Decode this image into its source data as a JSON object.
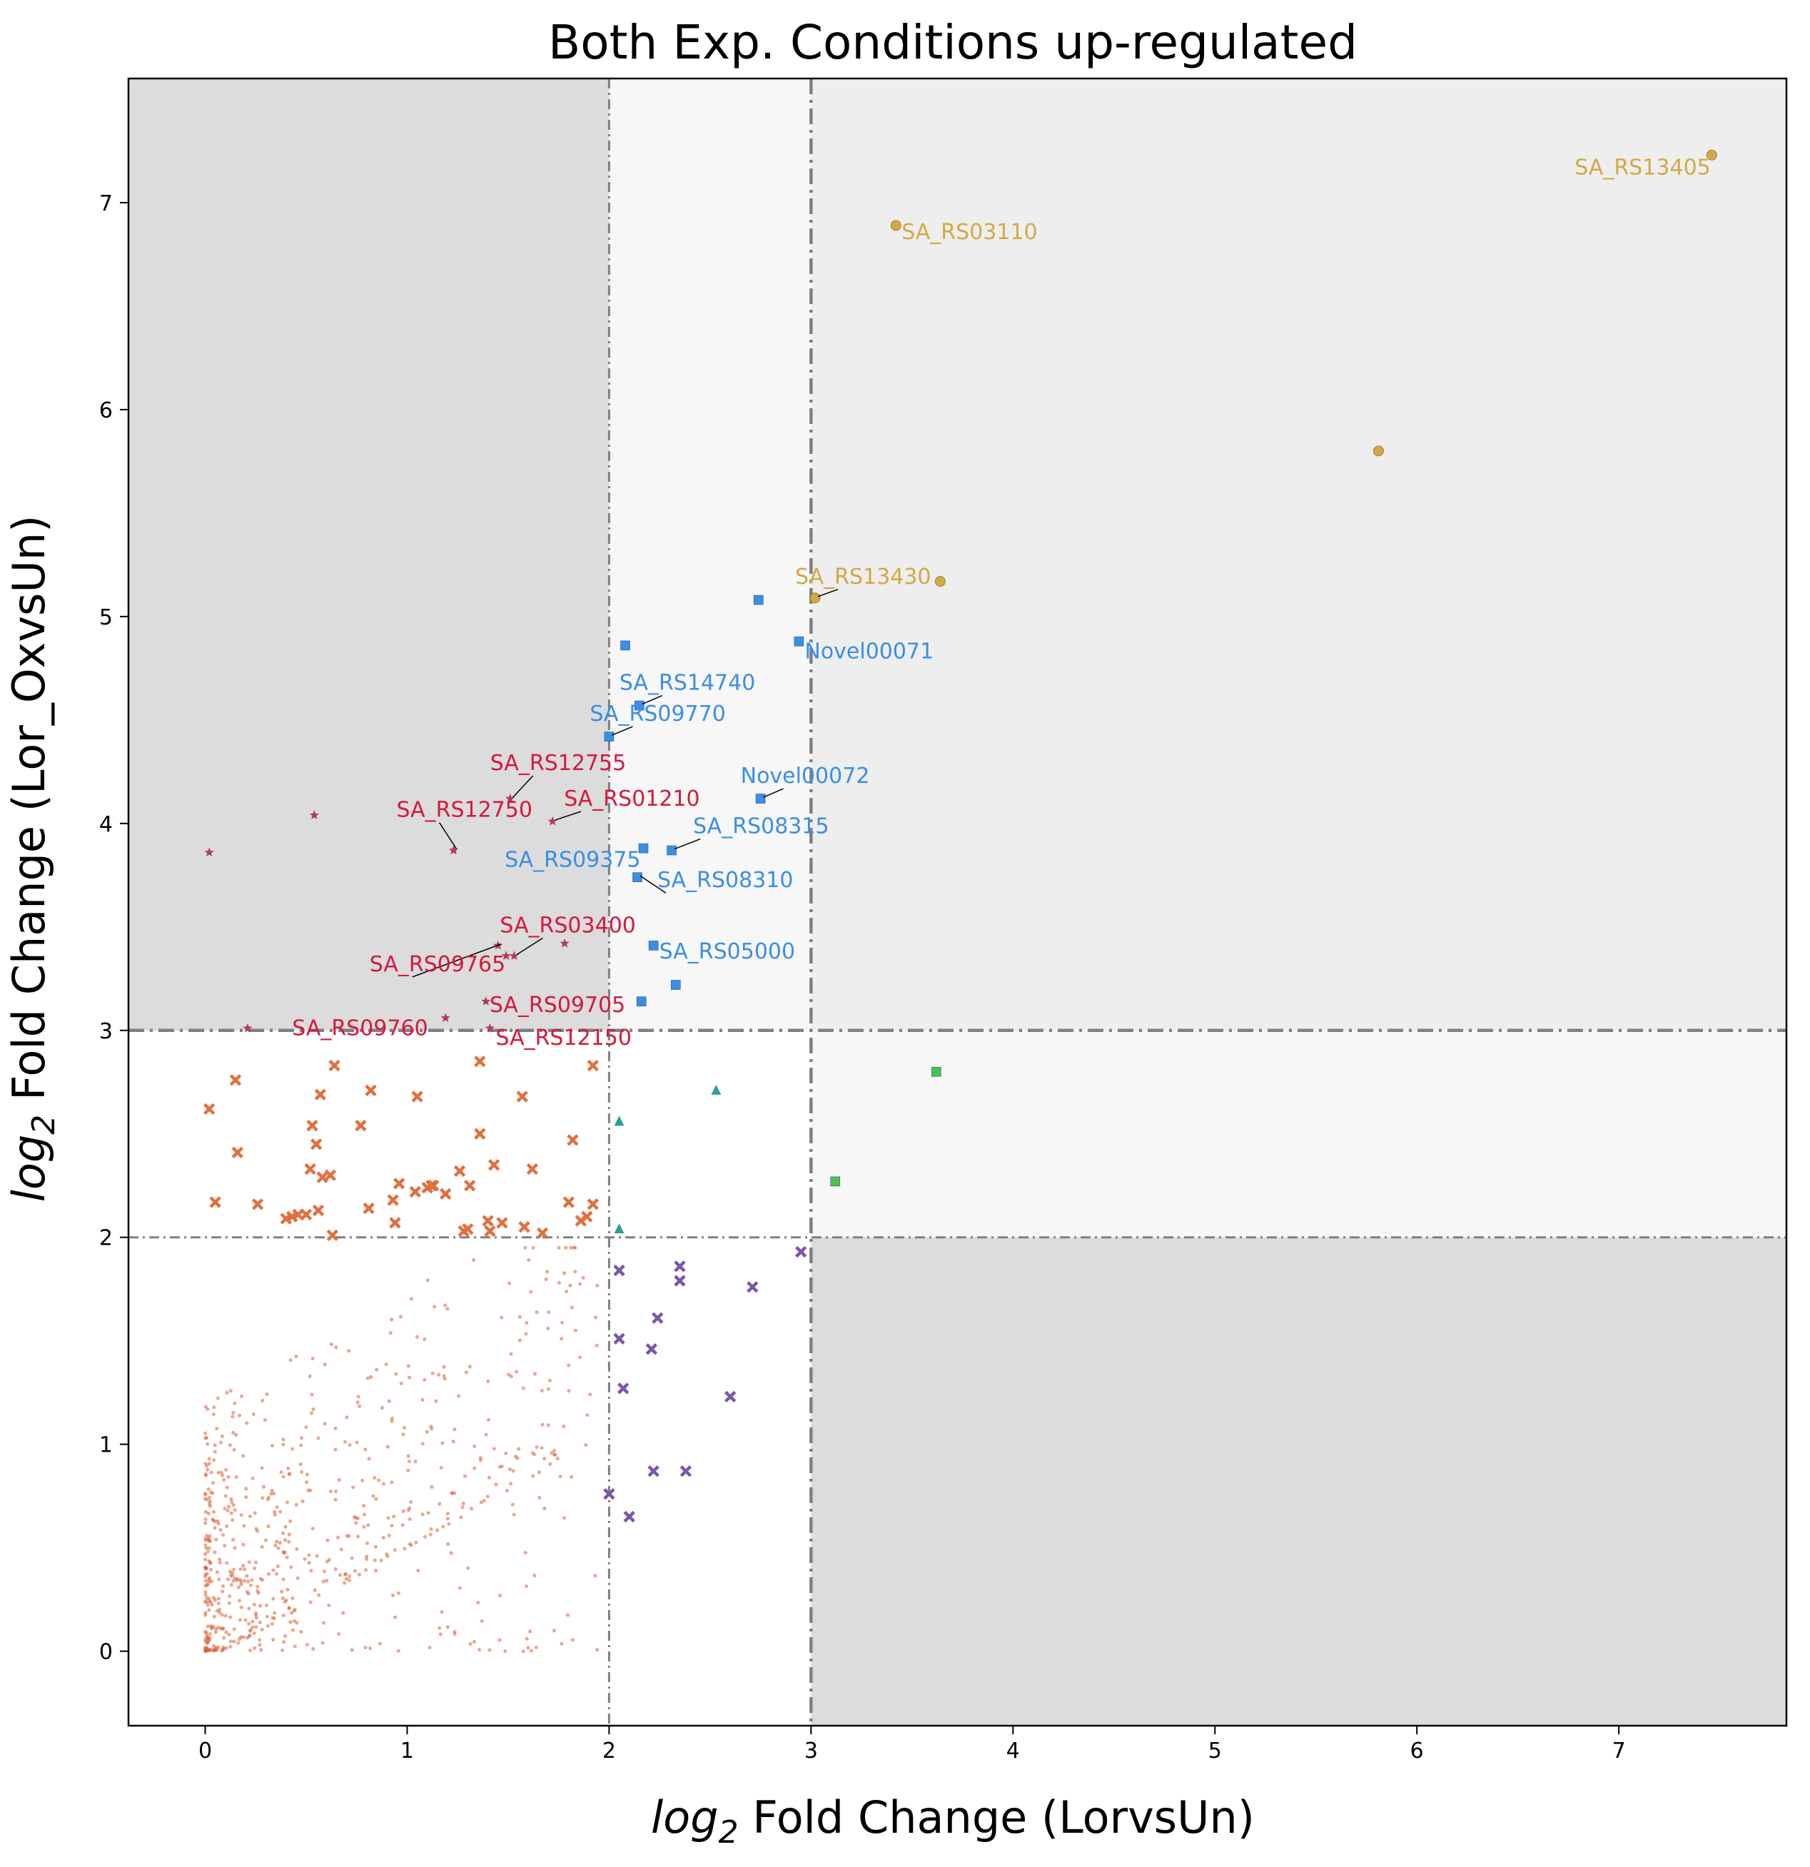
{
  "chart_data": {
    "type": "scatter",
    "title": "Both Exp. Conditions up-regulated",
    "xlabel": {
      "math": "log",
      "sub": "2",
      "rest": " Fold Change (LorvsUn)"
    },
    "ylabel": {
      "math": "log",
      "sub": "2",
      "rest": " Fold Change (Lor_OxvsUn)"
    },
    "xlim": [
      -0.38,
      7.83
    ],
    "ylim": [
      -0.36,
      7.6
    ],
    "xticks": [
      0,
      1,
      2,
      3,
      4,
      5,
      6,
      7
    ],
    "yticks": [
      0,
      1,
      2,
      3,
      4,
      5,
      6,
      7
    ],
    "thresholds": {
      "x": [
        2,
        3
      ],
      "y": [
        2,
        3
      ]
    },
    "regions": [
      {
        "x": [
          -0.38,
          2
        ],
        "y": [
          3,
          7.6
        ],
        "color": "#dcdcdc"
      },
      {
        "x": [
          2,
          3
        ],
        "y": [
          3,
          7.6
        ],
        "color": "#f7f7f7"
      },
      {
        "x": [
          3,
          7.83
        ],
        "y": [
          3,
          7.6
        ],
        "color": "#eeeeee"
      },
      {
        "x": [
          3,
          7.83
        ],
        "y": [
          2,
          3
        ],
        "color": "#f7f7f7"
      },
      {
        "x": [
          3,
          7.83
        ],
        "y": [
          -0.36,
          2
        ],
        "color": "#dcdcdc"
      }
    ],
    "series": [
      {
        "color": "#d4a843",
        "marker": "circle",
        "points": [
          [
            7.46,
            7.23
          ],
          [
            3.42,
            6.89
          ],
          [
            5.81,
            5.8
          ],
          [
            3.64,
            5.17
          ],
          [
            3.02,
            5.09
          ]
        ]
      },
      {
        "color": "#3a8ee6",
        "marker": "square",
        "points": [
          [
            2.74,
            5.08
          ],
          [
            2.94,
            4.88
          ],
          [
            2.08,
            4.86
          ],
          [
            2.15,
            4.57
          ],
          [
            2.0,
            4.42
          ],
          [
            2.75,
            4.12
          ],
          [
            2.17,
            3.88
          ],
          [
            2.31,
            3.87
          ],
          [
            2.14,
            3.74
          ],
          [
            2.22,
            3.41
          ],
          [
            2.33,
            3.22
          ],
          [
            2.16,
            3.14
          ]
        ]
      },
      {
        "color": "#b33a5a",
        "marker": "star",
        "points": [
          [
            0.02,
            3.86
          ],
          [
            0.54,
            4.04
          ],
          [
            1.23,
            3.87
          ],
          [
            1.51,
            4.12
          ],
          [
            1.72,
            4.01
          ],
          [
            1.45,
            3.41
          ],
          [
            1.49,
            3.36
          ],
          [
            1.53,
            3.36
          ],
          [
            1.78,
            3.42
          ],
          [
            1.39,
            3.14
          ],
          [
            1.19,
            3.06
          ],
          [
            0.21,
            3.01
          ],
          [
            1.41,
            3.01
          ]
        ]
      },
      {
        "color": "#e0703f",
        "marker": "x",
        "points": [
          [
            0.02,
            2.62
          ],
          [
            0.05,
            2.17
          ],
          [
            0.15,
            2.76
          ],
          [
            0.16,
            2.41
          ],
          [
            0.26,
            2.16
          ],
          [
            0.4,
            2.09
          ],
          [
            0.43,
            2.1
          ],
          [
            0.46,
            2.11
          ],
          [
            0.5,
            2.11
          ],
          [
            0.52,
            2.33
          ],
          [
            0.53,
            2.54
          ],
          [
            0.55,
            2.45
          ],
          [
            0.56,
            2.13
          ],
          [
            0.57,
            2.69
          ],
          [
            0.58,
            2.29
          ],
          [
            0.62,
            2.3
          ],
          [
            0.64,
            2.83
          ],
          [
            0.77,
            2.54
          ],
          [
            0.81,
            2.14
          ],
          [
            0.82,
            2.71
          ],
          [
            0.93,
            2.18
          ],
          [
            0.94,
            2.07
          ],
          [
            0.96,
            2.26
          ],
          [
            1.04,
            2.22
          ],
          [
            1.05,
            2.68
          ],
          [
            1.1,
            2.24
          ],
          [
            1.12,
            2.25
          ],
          [
            1.13,
            2.25
          ],
          [
            1.19,
            2.21
          ],
          [
            1.26,
            2.32
          ],
          [
            1.28,
            2.03
          ],
          [
            1.3,
            2.04
          ],
          [
            1.31,
            2.25
          ],
          [
            1.36,
            2.85
          ],
          [
            1.36,
            2.5
          ],
          [
            1.4,
            2.08
          ],
          [
            1.41,
            2.03
          ],
          [
            1.43,
            2.35
          ],
          [
            1.47,
            2.07
          ],
          [
            1.57,
            2.68
          ],
          [
            1.58,
            2.05
          ],
          [
            1.62,
            2.33
          ],
          [
            1.67,
            2.02
          ],
          [
            1.8,
            2.17
          ],
          [
            1.82,
            2.47
          ],
          [
            1.86,
            2.08
          ],
          [
            1.89,
            2.1
          ],
          [
            1.92,
            2.16
          ],
          [
            1.92,
            2.83
          ],
          [
            0.63,
            2.01
          ]
        ]
      },
      {
        "color": "#2e9e9a",
        "marker": "triangle",
        "points": [
          [
            2.53,
            2.71
          ],
          [
            2.05,
            2.56
          ],
          [
            2.05,
            2.04
          ]
        ]
      },
      {
        "color": "#4cc24c",
        "marker": "square",
        "points": [
          [
            3.62,
            2.8
          ],
          [
            3.12,
            2.27
          ]
        ]
      },
      {
        "color": "#7a57a8",
        "marker": "x",
        "points": [
          [
            2.95,
            1.93
          ],
          [
            2.35,
            1.86
          ],
          [
            2.05,
            1.84
          ],
          [
            2.35,
            1.79
          ],
          [
            2.71,
            1.76
          ],
          [
            2.24,
            1.61
          ],
          [
            2.05,
            1.51
          ],
          [
            2.21,
            1.46
          ],
          [
            2.07,
            1.27
          ],
          [
            2.6,
            1.23
          ],
          [
            2.22,
            0.87
          ],
          [
            2.38,
            0.87
          ],
          [
            2.0,
            0.76
          ],
          [
            2.1,
            0.65
          ]
        ]
      },
      {
        "color": "#d9623a",
        "marker": "dot",
        "cloud": true,
        "count": 700,
        "points": []
      }
    ],
    "annotations": [
      {
        "text": "SA_RS13405",
        "point": [
          7.46,
          7.23
        ],
        "color": "#d4a843"
      },
      {
        "text": "SA_RS03110",
        "point": [
          3.42,
          6.89
        ],
        "color": "#d4a843"
      },
      {
        "text": "SA_RS13430",
        "point": [
          3.02,
          5.09
        ],
        "color": "#d4a843"
      },
      {
        "text": "Novel00071",
        "point": [
          2.94,
          4.88
        ],
        "color": "#3a8ee6"
      },
      {
        "text": "SA_RS14740",
        "point": [
          2.15,
          4.57
        ],
        "color": "#3a8ee6"
      },
      {
        "text": "SA_RS09770",
        "point": [
          2.0,
          4.42
        ],
        "color": "#3a8ee6"
      },
      {
        "text": "Novel00072",
        "point": [
          2.75,
          4.12
        ],
        "color": "#3a8ee6"
      },
      {
        "text": "SA_RS08315",
        "point": [
          2.31,
          3.87
        ],
        "color": "#3a8ee6"
      },
      {
        "text": "SA_RS09375",
        "point": [
          2.17,
          3.88
        ],
        "color": "#3a8ee6"
      },
      {
        "text": "SA_RS08310",
        "point": [
          2.14,
          3.74
        ],
        "color": "#3a8ee6"
      },
      {
        "text": "SA_RS05000",
        "point": [
          2.22,
          3.41
        ],
        "color": "#3a8ee6"
      },
      {
        "text": "SA_RS12755",
        "point": [
          1.51,
          4.12
        ],
        "color": "#d6183c"
      },
      {
        "text": "SA_RS01210",
        "point": [
          1.72,
          4.01
        ],
        "color": "#d6183c"
      },
      {
        "text": "SA_RS12750",
        "point": [
          1.23,
          3.87
        ],
        "color": "#d6183c"
      },
      {
        "text": "SA_RS03400",
        "point": [
          1.53,
          3.36
        ],
        "color": "#d6183c"
      },
      {
        "text": "SA_RS09765",
        "point": [
          1.45,
          3.41
        ],
        "color": "#d6183c"
      },
      {
        "text": "SA_RS09705",
        "point": [
          1.39,
          3.14
        ],
        "color": "#d6183c"
      },
      {
        "text": "SA_RS09760",
        "point": [
          1.19,
          3.06
        ],
        "color": "#d6183c"
      },
      {
        "text": "SA_RS12150",
        "point": [
          1.41,
          3.01
        ],
        "color": "#d6183c"
      }
    ]
  }
}
